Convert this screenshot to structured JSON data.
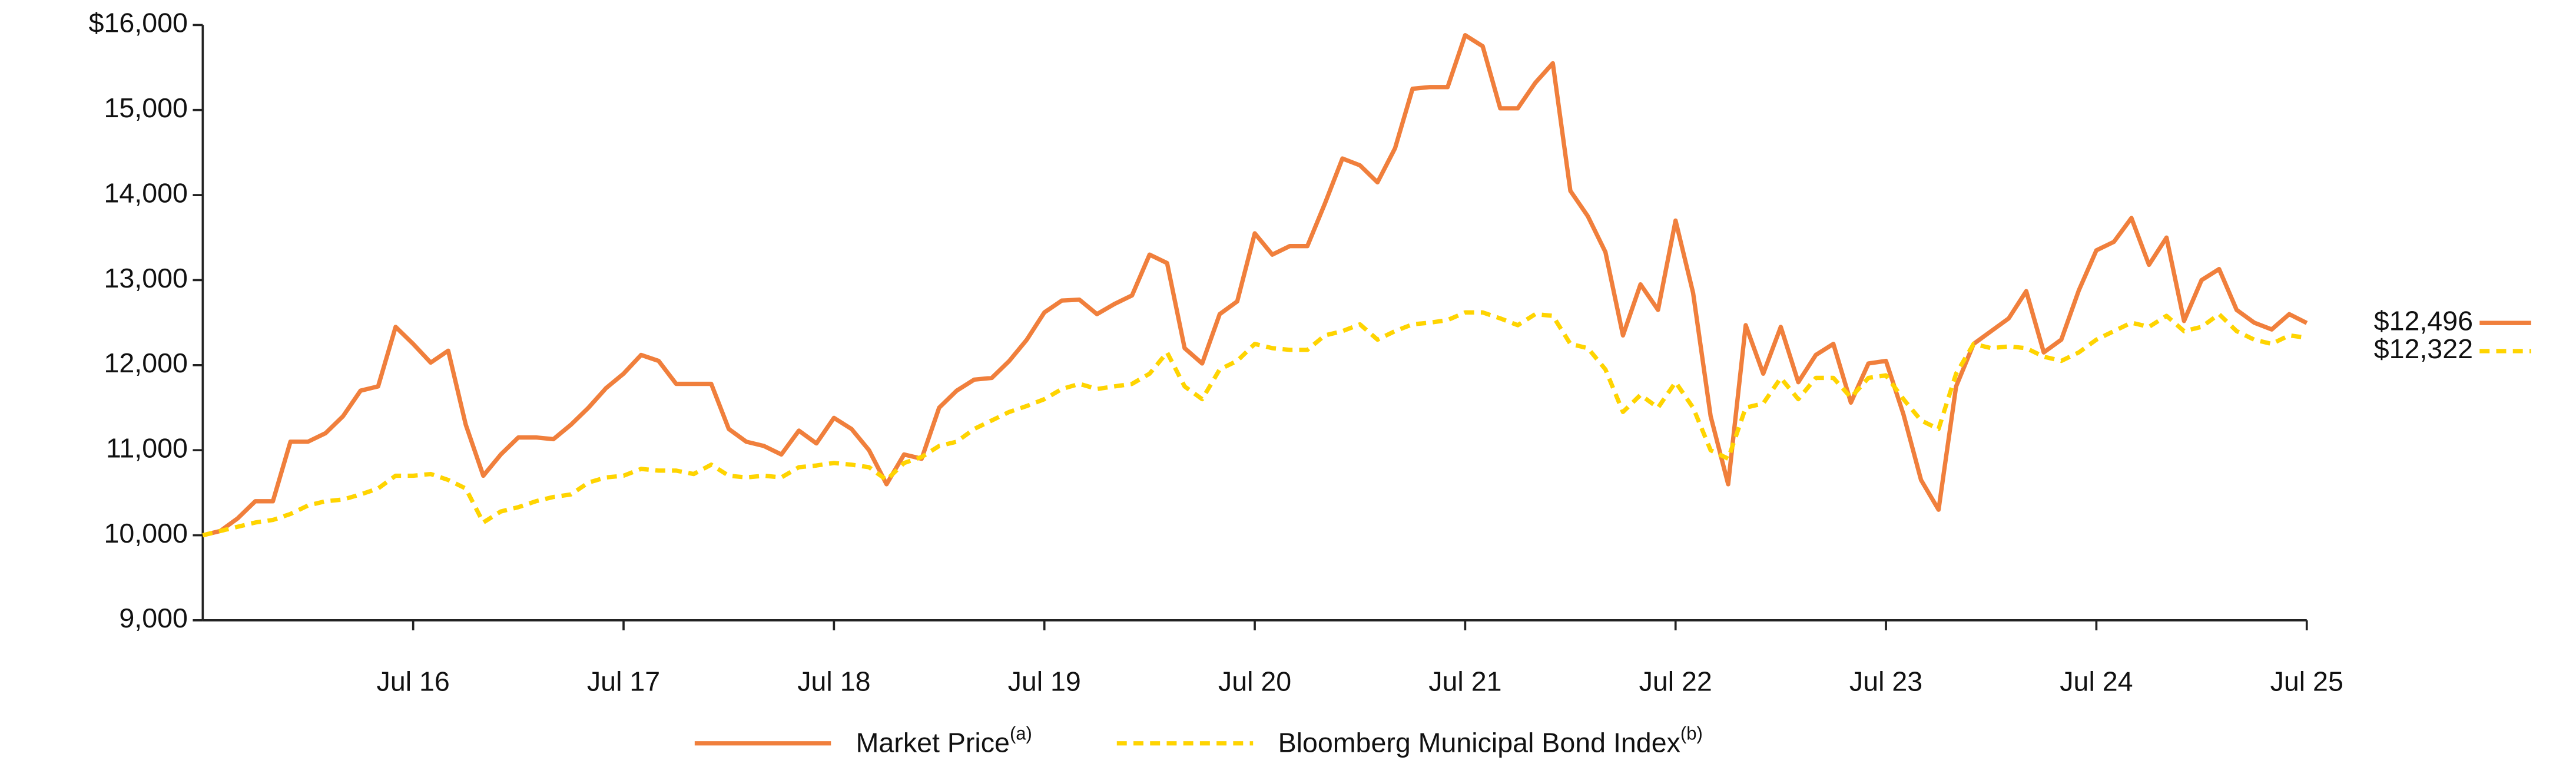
{
  "chart_data": {
    "type": "line",
    "categories": [
      null,
      null,
      null,
      null,
      null,
      null,
      null,
      null,
      null,
      null,
      null,
      null,
      "Jul 16",
      null,
      null,
      null,
      null,
      null,
      null,
      null,
      null,
      null,
      null,
      null,
      "Jul 17",
      null,
      null,
      null,
      null,
      null,
      null,
      null,
      null,
      null,
      null,
      null,
      "Jul 18",
      null,
      null,
      null,
      null,
      null,
      null,
      null,
      null,
      null,
      null,
      null,
      "Jul 19",
      null,
      null,
      null,
      null,
      null,
      null,
      null,
      null,
      null,
      null,
      null,
      "Jul 20",
      null,
      null,
      null,
      null,
      null,
      null,
      null,
      null,
      null,
      null,
      null,
      "Jul 21",
      null,
      null,
      null,
      null,
      null,
      null,
      null,
      null,
      null,
      null,
      null,
      "Jul 22",
      null,
      null,
      null,
      null,
      null,
      null,
      null,
      null,
      null,
      null,
      null,
      "Jul 23",
      null,
      null,
      null,
      null,
      null,
      null,
      null,
      null,
      null,
      null,
      null,
      "Jul 24",
      null,
      null,
      null,
      null,
      null,
      null,
      null,
      null,
      null,
      null,
      null,
      "Jul 25"
    ],
    "series": [
      {
        "name": "Market Price",
        "footnote": "(a)",
        "color": "#f07f3c",
        "dashed": false,
        "values": [
          10000,
          10050,
          10200,
          10400,
          10400,
          11100,
          11100,
          11200,
          11400,
          11700,
          11750,
          12450,
          12250,
          12030,
          12170,
          11300,
          10700,
          10950,
          11150,
          11150,
          11130,
          11300,
          11500,
          11730,
          11900,
          12120,
          12050,
          11780,
          11780,
          11780,
          11250,
          11100,
          11050,
          10950,
          11230,
          11080,
          11380,
          11250,
          11000,
          10600,
          10950,
          10900,
          11500,
          11700,
          11830,
          11850,
          12050,
          12300,
          12620,
          12760,
          12770,
          12600,
          12720,
          12820,
          13300,
          13200,
          12200,
          12020,
          12600,
          12750,
          13550,
          13300,
          13400,
          13400,
          13900,
          14430,
          14350,
          14150,
          14550,
          15250,
          15270,
          15270,
          15880,
          15750,
          15020,
          15020,
          15320,
          15550,
          14050,
          13750,
          13330,
          12350,
          12950,
          12650,
          13700,
          12850,
          11400,
          10600,
          12470,
          11900,
          12450,
          11800,
          12120,
          12250,
          11560,
          12020,
          12050,
          11420,
          10650,
          10300,
          11750,
          12250,
          12400,
          12550,
          12870,
          12150,
          12300,
          12880,
          13350,
          13450,
          13730,
          13180,
          13500,
          12520,
          13000,
          13130,
          12650,
          12500,
          12420,
          12600,
          12496
        ],
        "value_labels": [
          null,
          null,
          null,
          null,
          null,
          null,
          null,
          null,
          null,
          null,
          null,
          null,
          null,
          null,
          null,
          null,
          null,
          null,
          null,
          null,
          null,
          null,
          null,
          null,
          null,
          null,
          null,
          null,
          null,
          null,
          null,
          null,
          null,
          null,
          null,
          null,
          null,
          null,
          null,
          null,
          null,
          null,
          null,
          null,
          null,
          null,
          null,
          null,
          null,
          null,
          null,
          null,
          null,
          null,
          null,
          null,
          null,
          null,
          null,
          null,
          null,
          null,
          null,
          null,
          null,
          null,
          null,
          null,
          null,
          null,
          null,
          null,
          null,
          null,
          null,
          null,
          null,
          null,
          null,
          null,
          null,
          null,
          null,
          null,
          null,
          null,
          null,
          null,
          null,
          null,
          null,
          null,
          null,
          null,
          null,
          null,
          null,
          null,
          null,
          null,
          null,
          null,
          null,
          null,
          null,
          null,
          null,
          null,
          null,
          null,
          null,
          null,
          null,
          null,
          null,
          null,
          null,
          null,
          null,
          null,
          "$12,496"
        ]
      },
      {
        "name": "Bloomberg Municipal Bond Index",
        "footnote": "(b)",
        "color": "#ffd400",
        "dashed": true,
        "values": [
          10000,
          10050,
          10100,
          10150,
          10180,
          10250,
          10350,
          10400,
          10420,
          10480,
          10550,
          10700,
          10700,
          10720,
          10650,
          10550,
          10150,
          10280,
          10330,
          10400,
          10450,
          10480,
          10620,
          10680,
          10700,
          10780,
          10760,
          10760,
          10720,
          10830,
          10700,
          10680,
          10700,
          10680,
          10800,
          10820,
          10850,
          10830,
          10800,
          10650,
          10850,
          10920,
          11050,
          11100,
          11250,
          11350,
          11450,
          11520,
          11600,
          11720,
          11780,
          11720,
          11750,
          11780,
          11900,
          12150,
          11750,
          11600,
          11950,
          12050,
          12250,
          12200,
          12180,
          12180,
          12350,
          12400,
          12480,
          12300,
          12400,
          12480,
          12500,
          12530,
          12620,
          12620,
          12550,
          12470,
          12600,
          12580,
          12250,
          12200,
          11950,
          11450,
          11650,
          11500,
          11800,
          11500,
          11000,
          10900,
          11500,
          11550,
          11850,
          11600,
          11850,
          11850,
          11620,
          11850,
          11880,
          11600,
          11350,
          11250,
          11900,
          12250,
          12200,
          12220,
          12200,
          12100,
          12050,
          12150,
          12300,
          12400,
          12500,
          12450,
          12580,
          12400,
          12450,
          12600,
          12400,
          12300,
          12250,
          12350,
          12322
        ],
        "value_labels": [
          null,
          null,
          null,
          null,
          null,
          null,
          null,
          null,
          null,
          null,
          null,
          null,
          null,
          null,
          null,
          null,
          null,
          null,
          null,
          null,
          null,
          null,
          null,
          null,
          null,
          null,
          null,
          null,
          null,
          null,
          null,
          null,
          null,
          null,
          null,
          null,
          null,
          null,
          null,
          null,
          null,
          null,
          null,
          null,
          null,
          null,
          null,
          null,
          null,
          null,
          null,
          null,
          null,
          null,
          null,
          null,
          null,
          null,
          null,
          null,
          null,
          null,
          null,
          null,
          null,
          null,
          null,
          null,
          null,
          null,
          null,
          null,
          null,
          null,
          null,
          null,
          null,
          null,
          null,
          null,
          null,
          null,
          null,
          null,
          null,
          null,
          null,
          null,
          null,
          null,
          null,
          null,
          null,
          null,
          null,
          null,
          null,
          null,
          null,
          null,
          null,
          null,
          null,
          null,
          null,
          null,
          null,
          null,
          null,
          null,
          null,
          null,
          null,
          null,
          null,
          null,
          null,
          null,
          null,
          null,
          "$12,322"
        ]
      }
    ],
    "ylim": [
      9000,
      16000
    ],
    "yticks": [
      {
        "value": 9000,
        "label": "9,000"
      },
      {
        "value": 10000,
        "label": "10,000"
      },
      {
        "value": 11000,
        "label": "11,000"
      },
      {
        "value": 12000,
        "label": "12,000"
      },
      {
        "value": 13000,
        "label": "13,000"
      },
      {
        "value": 14000,
        "label": "14,000"
      },
      {
        "value": 15000,
        "label": "15,000"
      },
      {
        "value": 16000,
        "label": "$16,000"
      }
    ],
    "grid": false
  }
}
